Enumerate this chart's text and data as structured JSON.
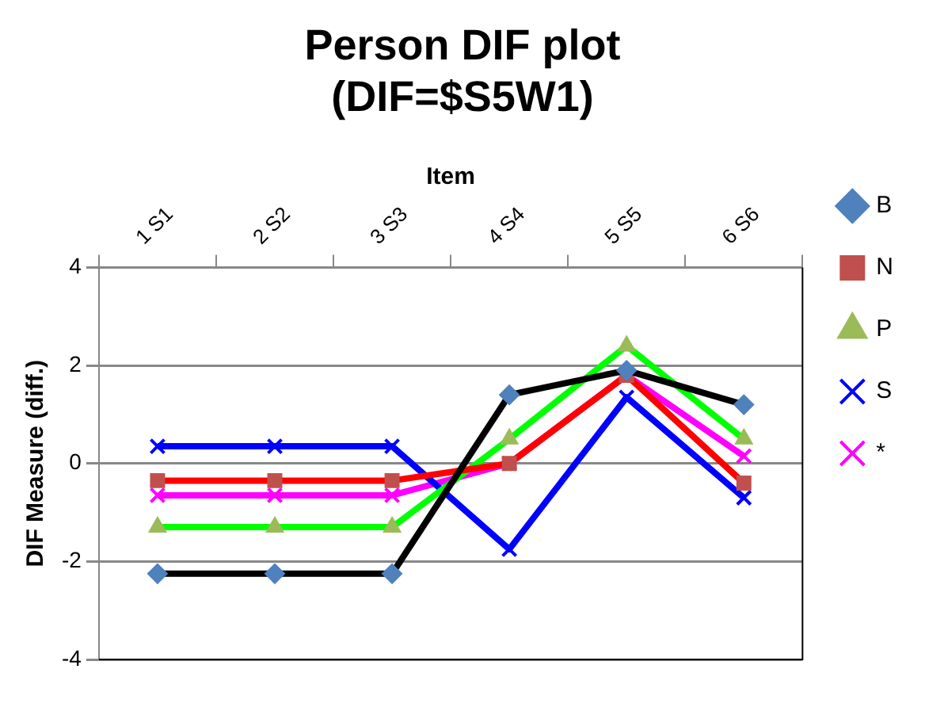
{
  "chart_data": {
    "type": "line",
    "title": "Person DIF plot\n(DIF=$S5W1)",
    "xlabel": "Item",
    "ylabel": "DIF Measure (diff.)",
    "categories": [
      "1 S1",
      "2 S2",
      "3 S3",
      "4 S4",
      "5 S5",
      "6 S6"
    ],
    "series": [
      {
        "name": "B",
        "color": "#000000",
        "marker": "diamond",
        "values": [
          -2.25,
          -2.25,
          -2.25,
          1.4,
          1.9,
          1.2
        ]
      },
      {
        "name": "N",
        "color": "#ff0000",
        "marker": "square",
        "values": [
          -0.35,
          -0.35,
          -0.35,
          0,
          1.8,
          -0.4
        ]
      },
      {
        "name": "P",
        "color": "#00ff00",
        "marker": "triangle",
        "values": [
          -1.3,
          -1.3,
          -1.3,
          0.5,
          2.4,
          0.5
        ]
      },
      {
        "name": "S",
        "color": "#0000ff",
        "marker": "cross",
        "values": [
          0.35,
          0.35,
          0.35,
          -1.75,
          1.35,
          -0.7
        ]
      },
      {
        "name": "*",
        "color": "#ff00ff",
        "marker": "cross",
        "values": [
          -0.65,
          -0.65,
          -0.65,
          0,
          1.8,
          0.15
        ]
      }
    ],
    "ylim": [
      -4,
      4
    ],
    "yticks": [
      -4,
      -2,
      0,
      2,
      4
    ],
    "grid": "y",
    "legend": "right"
  }
}
